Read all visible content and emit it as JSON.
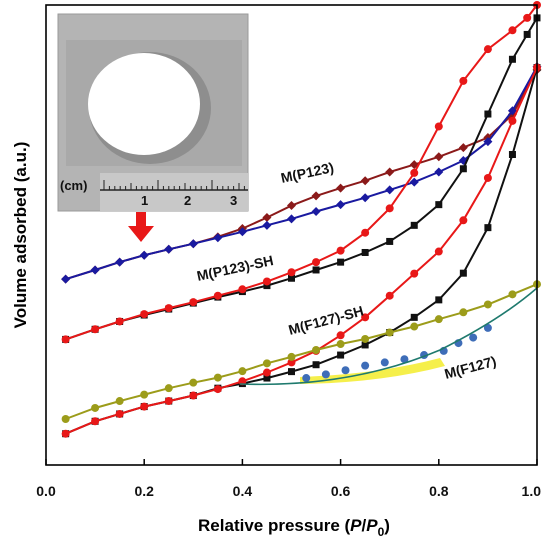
{
  "chart_data": {
    "type": "line",
    "xlabel_text": "Relative pressure (",
    "xlabel_italic": "P",
    "xlabel_slash": "/",
    "xlabel_italic2": "P",
    "xlabel_sub": "0",
    "xlabel_close": ")",
    "ylabel": "Volume adsorbed (a.u.)",
    "xlim": [
      0.0,
      1.0
    ],
    "ylim": [
      0,
      100
    ],
    "x_ticks": [
      "0.0",
      "0.2",
      "0.4",
      "0.6",
      "0.8",
      "1.0"
    ],
    "y_ticks_shown": false,
    "grid": false,
    "inset": {
      "type": "photo",
      "scale_unit": "(cm)",
      "scale_ticks": [
        "1",
        "2",
        "3"
      ]
    },
    "series_labels": [
      "M(P123)",
      "M(P123)-SH",
      "M(F127)-SH",
      "M(F127)"
    ],
    "series": [
      {
        "group": "M(P123)",
        "branch": "desorption",
        "color": "#8b1a1a",
        "marker": "diamond",
        "x": [
          0.04,
          0.1,
          0.15,
          0.2,
          0.25,
          0.3,
          0.35,
          0.4,
          0.45,
          0.5,
          0.55,
          0.6,
          0.65,
          0.7,
          0.75,
          0.8,
          0.85,
          0.9,
          0.95,
          1.0
        ],
        "y": [
          40.4,
          42.4,
          44.1,
          45.6,
          46.9,
          48.1,
          49.6,
          51.4,
          53.8,
          56.4,
          58.5,
          60.2,
          61.8,
          63.7,
          65.3,
          67,
          69,
          71.2,
          76.2,
          85.9
        ]
      },
      {
        "group": "M(P123)",
        "branch": "adsorption",
        "color": "#1a1aa0",
        "marker": "diamond",
        "x": [
          0.04,
          0.1,
          0.15,
          0.2,
          0.25,
          0.3,
          0.35,
          0.4,
          0.45,
          0.5,
          0.55,
          0.6,
          0.65,
          0.7,
          0.75,
          0.8,
          0.85,
          0.9,
          0.95,
          1.0
        ],
        "y": [
          40.4,
          42.4,
          44.1,
          45.6,
          46.9,
          48.1,
          49.4,
          50.7,
          52.1,
          53.5,
          55.1,
          56.6,
          58.1,
          59.8,
          61.5,
          63.7,
          66.2,
          70.3,
          77,
          86.6
        ]
      },
      {
        "group": "M(P123)-SH",
        "branch": "adsorption",
        "color": "#111111",
        "marker": "square",
        "x": [
          0.04,
          0.1,
          0.15,
          0.2,
          0.25,
          0.3,
          0.35,
          0.4,
          0.45,
          0.5,
          0.55,
          0.6,
          0.65,
          0.7,
          0.75,
          0.8,
          0.85,
          0.9,
          0.95,
          0.98,
          1.0
        ],
        "y": [
          27.3,
          29.5,
          31.2,
          32.6,
          33.9,
          35.2,
          36.5,
          37.7,
          39,
          40.6,
          42.4,
          44.1,
          46.2,
          48.6,
          52.1,
          56.6,
          64.4,
          76.3,
          88.2,
          93.6,
          97.2
        ]
      },
      {
        "group": "M(P123)-SH",
        "branch": "desorption",
        "color": "#e81818",
        "marker": "circle",
        "x": [
          0.04,
          0.1,
          0.15,
          0.2,
          0.25,
          0.3,
          0.35,
          0.4,
          0.45,
          0.5,
          0.55,
          0.6,
          0.65,
          0.7,
          0.75,
          0.8,
          0.85,
          0.9,
          0.95,
          0.98,
          1.0
        ],
        "y": [
          27.3,
          29.5,
          31.2,
          32.8,
          34.1,
          35.4,
          36.8,
          38.2,
          39.9,
          41.9,
          44.1,
          46.6,
          50.5,
          55.8,
          63.5,
          73.6,
          83.5,
          90.4,
          94.5,
          97.2,
          100
        ]
      },
      {
        "group": "M(F127)-SH",
        "branch": "adsorption",
        "color": "#111111",
        "marker": "square",
        "x": [
          0.04,
          0.1,
          0.15,
          0.2,
          0.25,
          0.3,
          0.35,
          0.4,
          0.45,
          0.5,
          0.55,
          0.6,
          0.65,
          0.7,
          0.75,
          0.8,
          0.85,
          0.9,
          0.95,
          1.0
        ],
        "y": [
          6.8,
          9.5,
          11.1,
          12.7,
          13.9,
          15.1,
          16.7,
          17.7,
          18.9,
          20.3,
          21.8,
          23.9,
          26.1,
          28.8,
          32.1,
          35.9,
          41.7,
          51.6,
          67.5,
          86.4
        ]
      },
      {
        "group": "M(F127)-SH",
        "branch": "desorption",
        "color": "#e81818",
        "marker": "circle",
        "x": [
          0.04,
          0.1,
          0.15,
          0.2,
          0.25,
          0.3,
          0.35,
          0.4,
          0.45,
          0.5,
          0.55,
          0.6,
          0.65,
          0.7,
          0.75,
          0.8,
          0.85,
          0.9,
          0.95,
          1.0
        ],
        "y": [
          6.8,
          9.5,
          11.1,
          12.7,
          13.9,
          15.1,
          16.5,
          18.2,
          20.1,
          22.3,
          24.8,
          28.2,
          32.1,
          36.8,
          41.6,
          46.4,
          53.2,
          62.4,
          74.8,
          86.4
        ]
      },
      {
        "group": "M(F127)",
        "branch": "desorption",
        "color": "#9c9c1a",
        "marker": "circle",
        "x": [
          0.04,
          0.1,
          0.15,
          0.2,
          0.25,
          0.3,
          0.35,
          0.4,
          0.45,
          0.5,
          0.55,
          0.6,
          0.65,
          0.7,
          0.75,
          0.8,
          0.85,
          0.9,
          0.95,
          1.0
        ],
        "y": [
          10,
          12.4,
          13.9,
          15.3,
          16.7,
          17.9,
          19,
          20.4,
          22.1,
          23.5,
          25,
          26.3,
          27.4,
          28.8,
          30.1,
          31.7,
          33.2,
          34.9,
          37.1,
          39.3
        ]
      },
      {
        "group": "M(F127)",
        "branch": "adsorption",
        "color": "#3e6db8",
        "marker": "circle",
        "x": [
          0.53,
          0.57,
          0.61,
          0.65,
          0.69,
          0.73,
          0.77,
          0.81,
          0.84,
          0.87,
          0.9
        ],
        "y": [
          18.9,
          19.7,
          20.6,
          21.6,
          22.3,
          23,
          23.9,
          24.8,
          26.5,
          27.7,
          29.8
        ]
      }
    ]
  }
}
